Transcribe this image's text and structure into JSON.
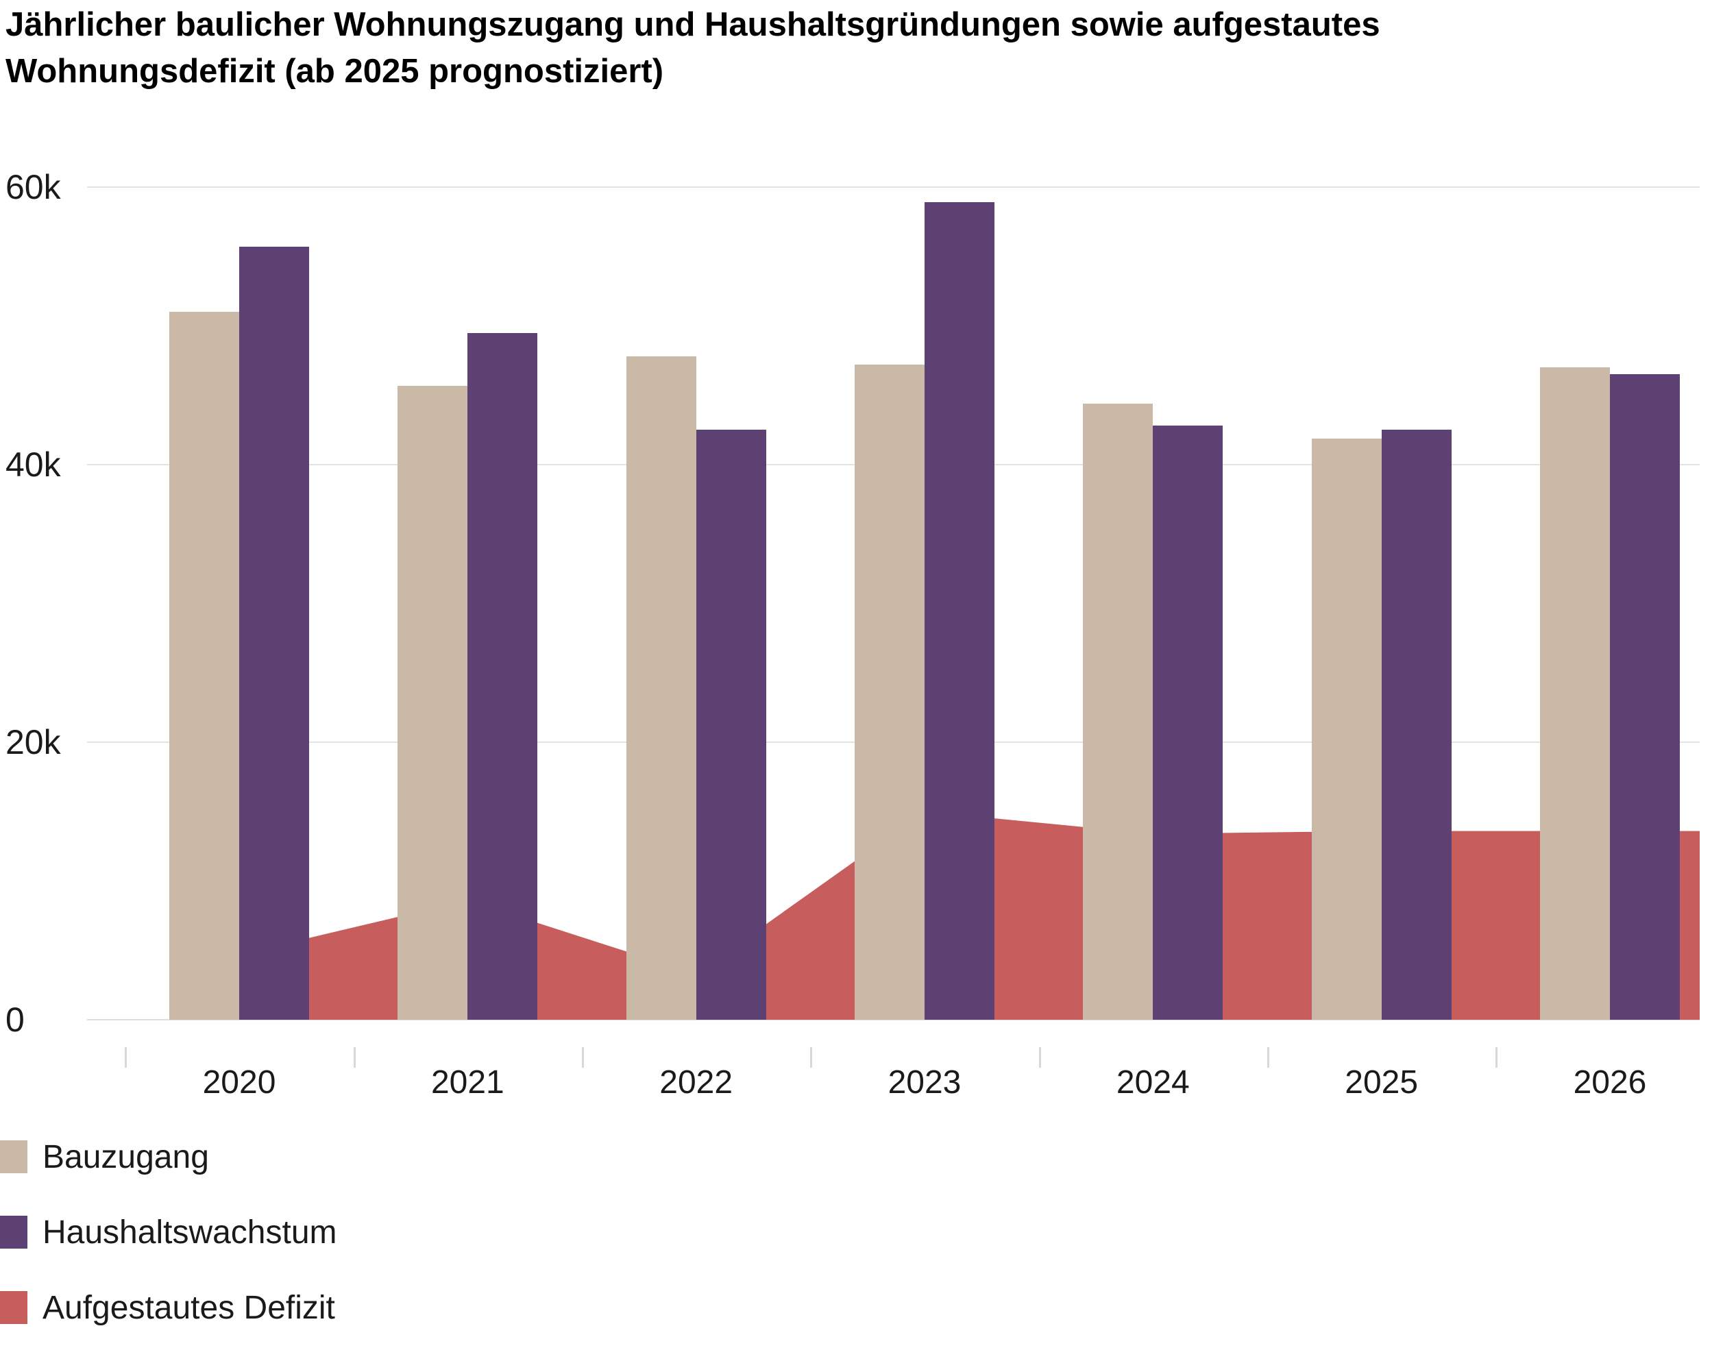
{
  "title": {
    "line1": "Jährlicher baulicher Wohnungszugang und Haushaltsgründungen sowie aufgestautes",
    "line2": "Wohnungsdefizit (ab 2025 prognostiziert)"
  },
  "chart_data": {
    "type": "bar",
    "subtype": "grouped-bars-with-area",
    "title": "Jährlicher baulicher Wohnungszugang und Haushaltsgründungen sowie aufgestautes Wohnungsdefizit (ab 2025 prognostiziert)",
    "categories": [
      "2020",
      "2021",
      "2022",
      "2023",
      "2024",
      "2025",
      "2026"
    ],
    "series": [
      {
        "name": "Bauzugang",
        "type": "bar",
        "color": "#c9b9a6",
        "values": [
          51000,
          45700,
          47800,
          47200,
          44400,
          41900,
          47000
        ]
      },
      {
        "name": "Haushaltswachstum",
        "type": "bar",
        "color": "#5e4173",
        "values": [
          55700,
          49500,
          42500,
          58900,
          42800,
          42500,
          46500
        ]
      },
      {
        "name": "Aufgestautes Defizit",
        "type": "area",
        "color": "#c75d5d",
        "values": [
          4700,
          8600,
          3300,
          15000,
          13400,
          13600,
          13600
        ]
      }
    ],
    "xlabel": "",
    "ylabel": "",
    "ylim": [
      0,
      63000
    ],
    "yticks": [
      {
        "value": 0,
        "label": "0"
      },
      {
        "value": 20000,
        "label": "20k"
      },
      {
        "value": 40000,
        "label": "40k"
      },
      {
        "value": 60000,
        "label": "60k"
      }
    ],
    "grid": "horizontal",
    "legend_position": "bottom-left"
  },
  "legend": {
    "items": [
      {
        "label": "Bauzugang",
        "color": "#c9b9a6"
      },
      {
        "label": "Haushaltswachstum",
        "color": "#5e4173"
      },
      {
        "label": "Aufgestautes Defizit",
        "color": "#c75d5d"
      }
    ]
  }
}
